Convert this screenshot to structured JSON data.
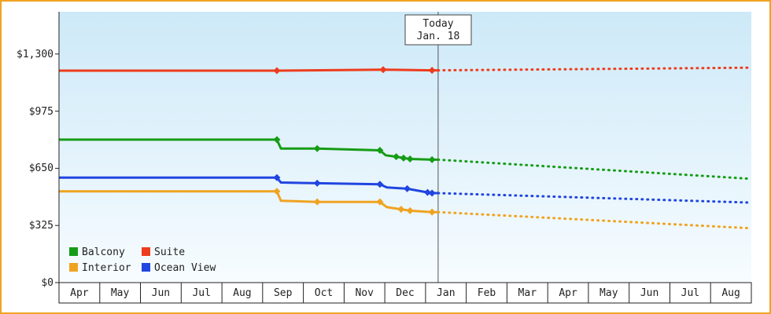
{
  "frame": {
    "border_color": "#f0a321",
    "background": "#ffffff"
  },
  "chart_data": {
    "type": "line",
    "x_labels": [
      "Apr",
      "May",
      "Jun",
      "Jul",
      "Aug",
      "Sep",
      "Oct",
      "Nov",
      "Dec",
      "Jan",
      "Feb",
      "Mar",
      "Apr",
      "May",
      "Jun",
      "Jul",
      "Aug"
    ],
    "xlim": [
      0,
      17
    ],
    "ylim": [
      0,
      1540
    ],
    "y_ticks": [
      {
        "label": "$1,300",
        "value": 1300
      },
      {
        "label": "$975",
        "value": 975
      },
      {
        "label": "$650",
        "value": 650
      },
      {
        "label": "$325",
        "value": 325
      },
      {
        "label": "$0",
        "value": 0
      }
    ],
    "axis_color": "#222222",
    "plot_bg_top": "#cde9f8",
    "plot_bg_bottom": "#f7fcff",
    "today": {
      "x": 9.31,
      "line1": "Today",
      "line2": "Jan. 18",
      "line_color": "#555555",
      "box_border_color": "#444444"
    },
    "legend": [
      {
        "label": "Balcony",
        "color": "#169c16"
      },
      {
        "label": "Suite",
        "color": "#ee3c1c"
      },
      {
        "label": "Interior",
        "color": "#f0a321"
      },
      {
        "label": "Ocean View",
        "color": "#2145e0"
      }
    ],
    "series": [
      {
        "name": "Suite",
        "color": "#ee3c1c",
        "points": [
          {
            "x": 0,
            "v": 1205
          },
          {
            "x": 5.35,
            "v": 1205,
            "marker": true
          },
          {
            "x": 7.96,
            "v": 1211,
            "marker": true
          },
          {
            "x": 9.16,
            "v": 1207,
            "marker": true
          },
          {
            "x": 9.31,
            "v": 1207
          }
        ],
        "forecast": {
          "x": 17,
          "v": 1222
        }
      },
      {
        "name": "Balcony",
        "color": "#169c16",
        "points": [
          {
            "x": 0,
            "v": 813
          },
          {
            "x": 5.35,
            "v": 813,
            "marker": true
          },
          {
            "x": 5.45,
            "v": 762
          },
          {
            "x": 6.34,
            "v": 762,
            "marker": true
          },
          {
            "x": 7.88,
            "v": 752,
            "marker": true
          },
          {
            "x": 8.02,
            "v": 724
          },
          {
            "x": 8.28,
            "v": 716,
            "marker": true
          },
          {
            "x": 8.46,
            "v": 708,
            "marker": true
          },
          {
            "x": 8.62,
            "v": 703,
            "marker": true
          },
          {
            "x": 9.16,
            "v": 699,
            "marker": true
          },
          {
            "x": 9.31,
            "v": 699
          }
        ],
        "forecast": {
          "x": 17,
          "v": 590
        }
      },
      {
        "name": "Interior",
        "color": "#f0a321",
        "points": [
          {
            "x": 0,
            "v": 519
          },
          {
            "x": 5.35,
            "v": 519,
            "marker": true
          },
          {
            "x": 5.45,
            "v": 465
          },
          {
            "x": 6.34,
            "v": 459,
            "marker": true
          },
          {
            "x": 7.88,
            "v": 459,
            "marker": true
          },
          {
            "x": 8.05,
            "v": 429
          },
          {
            "x": 8.4,
            "v": 417,
            "marker": true
          },
          {
            "x": 8.62,
            "v": 409,
            "marker": true
          },
          {
            "x": 9.16,
            "v": 401,
            "marker": true
          },
          {
            "x": 9.31,
            "v": 401
          }
        ],
        "forecast": {
          "x": 17,
          "v": 309
        }
      },
      {
        "name": "Ocean View",
        "color": "#2145e0",
        "points": [
          {
            "x": 0,
            "v": 597
          },
          {
            "x": 5.35,
            "v": 597,
            "marker": true
          },
          {
            "x": 5.45,
            "v": 569
          },
          {
            "x": 6.34,
            "v": 565,
            "marker": true
          },
          {
            "x": 7.88,
            "v": 559,
            "marker": true
          },
          {
            "x": 8.05,
            "v": 541
          },
          {
            "x": 8.55,
            "v": 534,
            "marker": true
          },
          {
            "x": 9.05,
            "v": 513,
            "marker": true
          },
          {
            "x": 9.16,
            "v": 509,
            "marker": true
          },
          {
            "x": 9.31,
            "v": 509
          }
        ],
        "forecast": {
          "x": 17,
          "v": 455
        }
      }
    ]
  }
}
